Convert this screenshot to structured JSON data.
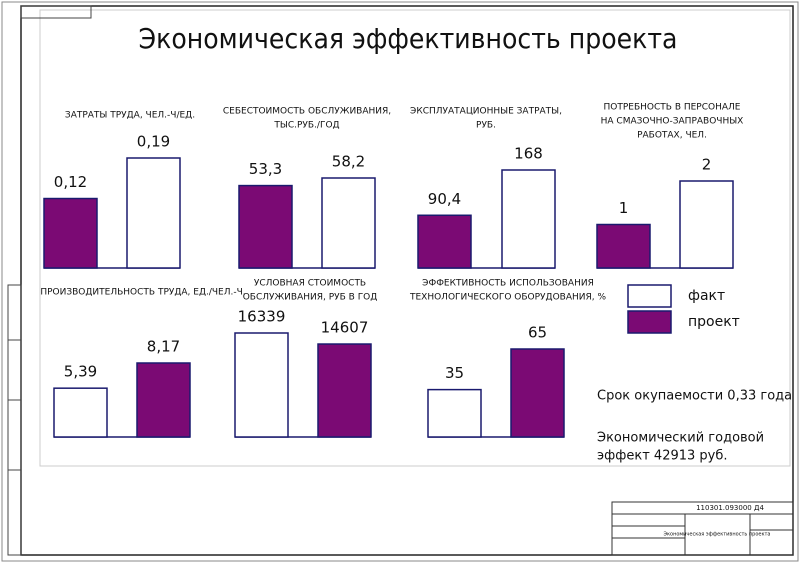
{
  "title": "Экономическая эффективность проекта",
  "chart_data": [
    {
      "type": "bar",
      "title": [
        "ЗАТРАТЫ ТРУДА, ЧЕЛ.-Ч/ЕД."
      ],
      "values": [
        0.12,
        0.19
      ],
      "value_labels": [
        "0,12",
        "0,19"
      ],
      "colors": [
        "#7b0a74",
        "#ffffff"
      ]
    },
    {
      "type": "bar",
      "title": [
        "СЕБЕСТОИМОСТЬ ОБСЛУЖИВАНИЯ,",
        "ТЫС.РУБ./ГОД"
      ],
      "values": [
        53.3,
        58.2
      ],
      "value_labels": [
        "53,3",
        "58,2"
      ],
      "colors": [
        "#7b0a74",
        "#ffffff"
      ]
    },
    {
      "type": "bar",
      "title": [
        "ЭКСПЛУАТАЦИОННЫЕ ЗАТРАТЫ,",
        "РУБ."
      ],
      "values": [
        90.4,
        168
      ],
      "value_labels": [
        "90,4",
        "168"
      ],
      "colors": [
        "#7b0a74",
        "#ffffff"
      ]
    },
    {
      "type": "bar",
      "title": [
        "ПОТРЕБНОСТЬ В ПЕРСОНАЛЕ",
        "НА СМАЗОЧНО-ЗАПРАВОЧНЫХ",
        "РАБОТАХ, ЧЕЛ."
      ],
      "values": [
        1,
        2
      ],
      "colors": [
        "#7b0a74",
        "#ffffff"
      ]
    },
    {
      "type": "bar",
      "title": [
        "ПРОИЗВОДИТЕЛЬНОСТЬ ТРУДА, ЕД./ЧЕЛ.-Ч."
      ],
      "values": [
        5.39,
        8.17
      ],
      "value_labels": [
        "5,39",
        "8,17"
      ],
      "colors": [
        "#ffffff",
        "#7b0a74"
      ]
    },
    {
      "type": "bar",
      "title": [
        "УСЛОВНАЯ СТОИМОСТЬ",
        "ОБСЛУЖИВАНИЯ, РУБ В ГОД"
      ],
      "values": [
        16339,
        14607
      ],
      "colors": [
        "#ffffff",
        "#7b0a74"
      ]
    },
    {
      "type": "bar",
      "title": [
        "ЭФФЕКТИВНОСТЬ ИСПОЛЬЗОВАНИЯ",
        "ТЕХНОЛОГИЧЕСКОГО ОБОРУДОВАНИЯ, %"
      ],
      "values": [
        35,
        65
      ],
      "colors": [
        "#ffffff",
        "#7b0a74"
      ]
    }
  ],
  "legend": [
    {
      "name": "факт",
      "color": "#ffffff"
    },
    {
      "name": "проект",
      "color": "#7b0a74"
    }
  ],
  "notes": [
    "Срок окупаемости 0,33 года",
    "Экономический годовой",
    "эффект 42913 руб."
  ],
  "stamp": {
    "code": "110301.093000 Д4",
    "title": "Экономическая эффективность проекта"
  }
}
